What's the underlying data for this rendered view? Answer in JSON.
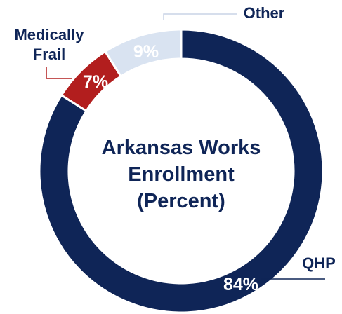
{
  "chart_data": {
    "type": "pie",
    "donut": true,
    "title_lines": [
      "Arkansas Works",
      "Enrollment",
      "(Percent)"
    ],
    "categories": [
      "QHP",
      "Medically Frail",
      "Other"
    ],
    "values": [
      84,
      7,
      9
    ],
    "value_labels": [
      "84%",
      "7%",
      "9%"
    ],
    "category_label_lines": [
      [
        "QHP"
      ],
      [
        "Medically",
        "Frail"
      ],
      [
        "Other"
      ]
    ],
    "legend": "none",
    "colors": {
      "QHP": "#0f2557",
      "Medically Frail": "#b21e1e",
      "Other": "#d9e3f1",
      "title": "#0f2557",
      "value_text_dark": "#ffffff",
      "value_text_light": "#ffffff",
      "leader": "#0f2557",
      "leader_red": "#b21e1e",
      "leader_light": "#c9d4e6"
    }
  }
}
